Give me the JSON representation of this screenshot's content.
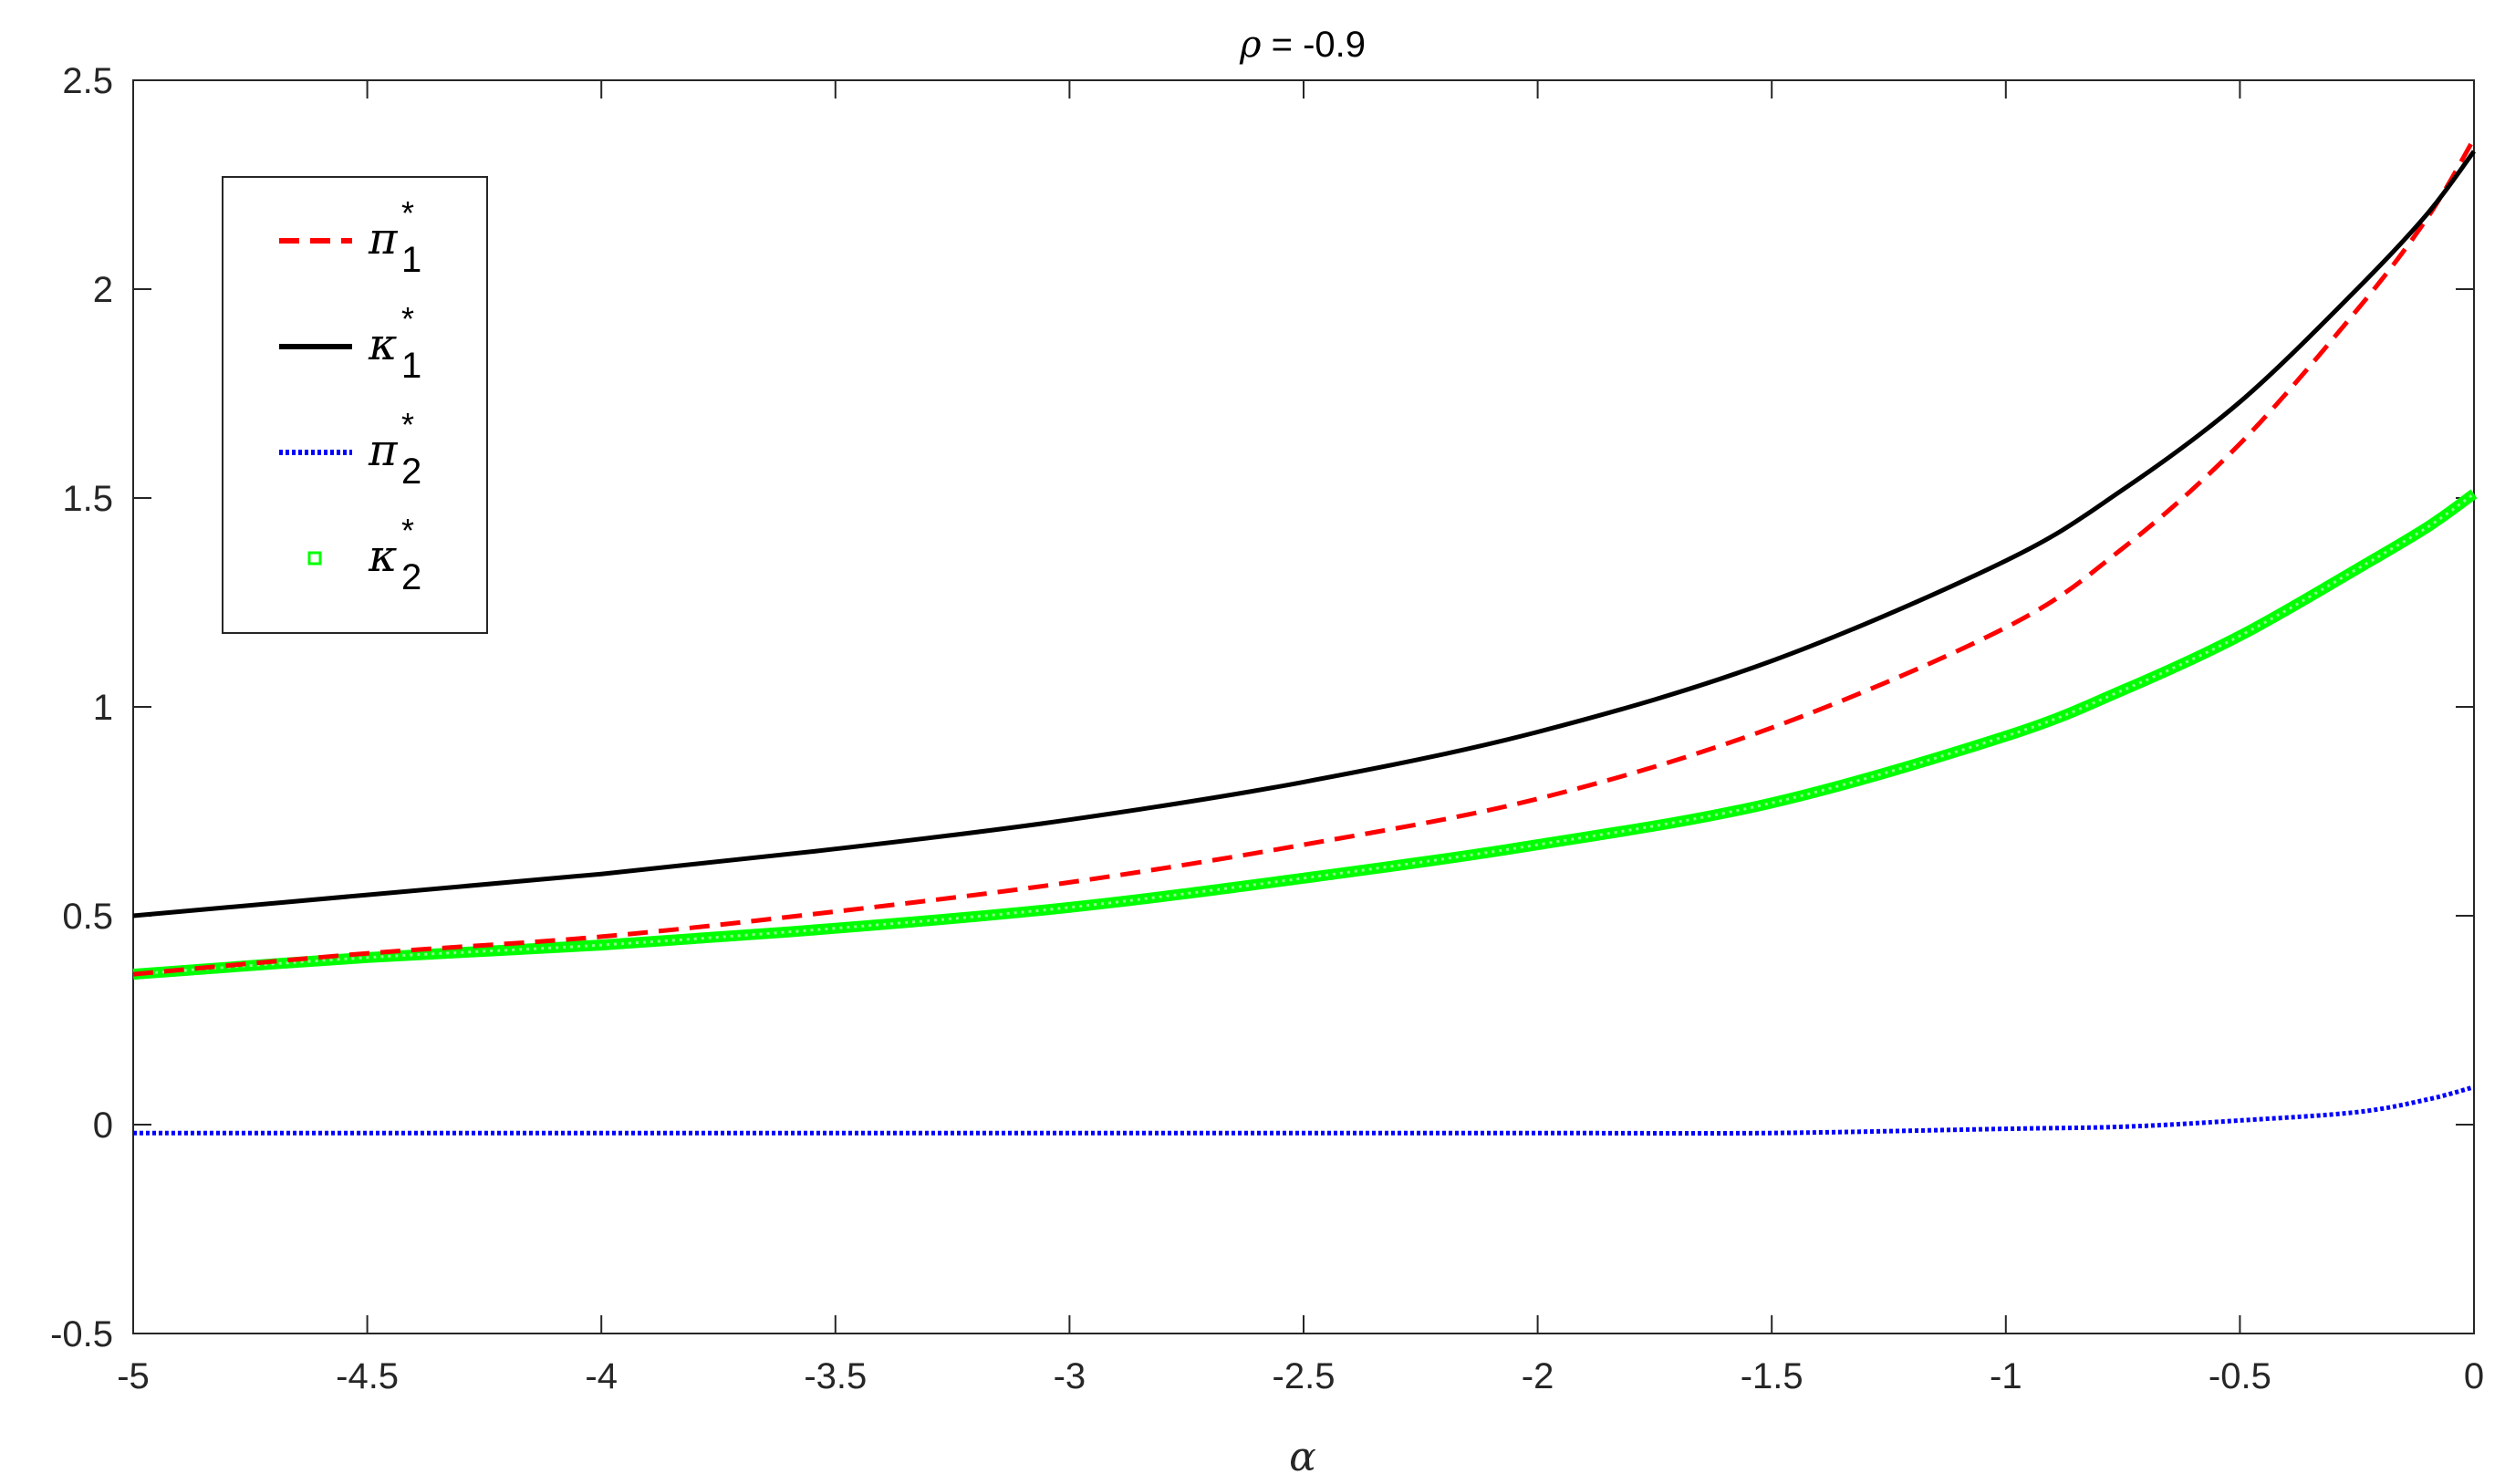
{
  "chart_data": {
    "type": "line",
    "title_prefix": "ρ",
    "title_suffix": " = -0.9",
    "xlabel": "α",
    "ylabel": "",
    "xlim": [
      -5,
      0
    ],
    "ylim": [
      -0.5,
      2.5
    ],
    "xticks": [
      -5,
      -4.5,
      -4,
      -3.5,
      -3,
      -2.5,
      -2,
      -1.5,
      -1,
      -0.5,
      0
    ],
    "xtick_labels": [
      "-5",
      "-4.5",
      "-4",
      "-3.5",
      "-3",
      "-2.5",
      "-2",
      "-1.5",
      "-1",
      "-0.5",
      "0"
    ],
    "yticks": [
      -0.5,
      0,
      0.5,
      1,
      1.5,
      2,
      2.5
    ],
    "ytick_labels": [
      "-0.5",
      "0",
      "0.5",
      "1",
      "1.5",
      "2",
      "2.5"
    ],
    "grid": false,
    "legend_position": "top-left",
    "x": [
      -5,
      -4.5,
      -4,
      -3.5,
      -3,
      -2.5,
      -2,
      -1.5,
      -1,
      -0.75,
      -0.5,
      -0.25,
      -0.1,
      0
    ],
    "series": [
      {
        "name": "π*1",
        "legend_symbol": "π",
        "legend_sub": "1",
        "legend_sup": "*",
        "style": "dashed",
        "color": "#ff0000",
        "values": [
          0.36,
          0.41,
          0.45,
          0.51,
          0.58,
          0.67,
          0.78,
          0.95,
          1.19,
          1.38,
          1.63,
          1.95,
          2.17,
          2.36
        ]
      },
      {
        "name": "κ*1",
        "legend_symbol": "κ",
        "legend_sub": "1",
        "legend_sup": "*",
        "style": "solid",
        "color": "#000000",
        "values": [
          0.5,
          0.55,
          0.6,
          0.66,
          0.73,
          0.82,
          0.94,
          1.11,
          1.35,
          1.52,
          1.73,
          2.0,
          2.18,
          2.33
        ]
      },
      {
        "name": "π*2",
        "legend_symbol": "π",
        "legend_sub": "2",
        "legend_sup": "*",
        "style": "dotted",
        "color": "#0000ff",
        "values": [
          -0.02,
          -0.02,
          -0.02,
          -0.02,
          -0.02,
          -0.02,
          -0.02,
          -0.02,
          -0.01,
          -0.005,
          0.01,
          0.03,
          0.06,
          0.09
        ]
      },
      {
        "name": "κ*2",
        "legend_symbol": "κ",
        "legend_sub": "2",
        "legend_sup": "*",
        "style": "markers",
        "color": "#00ff00",
        "values": [
          0.36,
          0.4,
          0.43,
          0.47,
          0.52,
          0.59,
          0.67,
          0.77,
          0.93,
          1.04,
          1.17,
          1.33,
          1.43,
          1.51
        ]
      }
    ]
  }
}
